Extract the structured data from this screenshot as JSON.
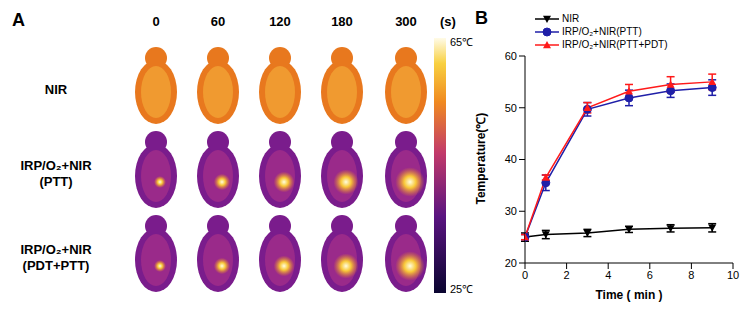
{
  "chart_data": [
    {
      "type": "image_grid",
      "title": "A",
      "x": [
        0,
        60,
        120,
        180,
        300
      ],
      "xlabel": "(s)",
      "categories": [
        "NIR",
        "IRP/O₂+NIR\n(PTT)",
        "IRP/O₂+NIR\n(PDT+PTT)"
      ],
      "colorbar": {
        "range": [
          25,
          65
        ],
        "ticks": [
          {
            "value": 65,
            "label": "65℃"
          },
          {
            "value": 25,
            "label": "25℃"
          }
        ]
      }
    },
    {
      "type": "line",
      "title": "B",
      "xlabel": "Time ( min )",
      "ylabel": "Temperature(℃)",
      "x": [
        0,
        1,
        3,
        5,
        7,
        9
      ],
      "xlim": [
        0,
        10
      ],
      "xticks": [
        0,
        2,
        4,
        6,
        8,
        10
      ],
      "ylim": [
        20,
        60
      ],
      "yticks": [
        20,
        30,
        40,
        50,
        60
      ],
      "grid": false,
      "legend": "top left",
      "series": [
        {
          "name": "NIR",
          "color": "#000000",
          "marker": "triangle-down",
          "values": [
            25,
            25.5,
            25.8,
            26.5,
            26.7,
            26.8
          ],
          "errors": [
            0.8,
            0.8,
            0.7,
            0.6,
            0.7,
            0.8
          ]
        },
        {
          "name": "IRP/O₂+NIR(PTT)",
          "color": "#1f1fa8",
          "marker": "circle",
          "values": [
            25,
            35.5,
            49.7,
            51.9,
            53.3,
            53.9
          ],
          "errors": [
            0.5,
            1.5,
            1.3,
            1.5,
            1.3,
            1.5
          ]
        },
        {
          "name": "IRP/O₂+NIR(PTT+PDT)",
          "color": "#ff1a1a",
          "marker": "triangle",
          "values": [
            25,
            36.5,
            50,
            53.2,
            54.5,
            55
          ],
          "errors": [
            0.5,
            0.5,
            1,
            1.3,
            1.5,
            1.5
          ]
        }
      ]
    }
  ]
}
